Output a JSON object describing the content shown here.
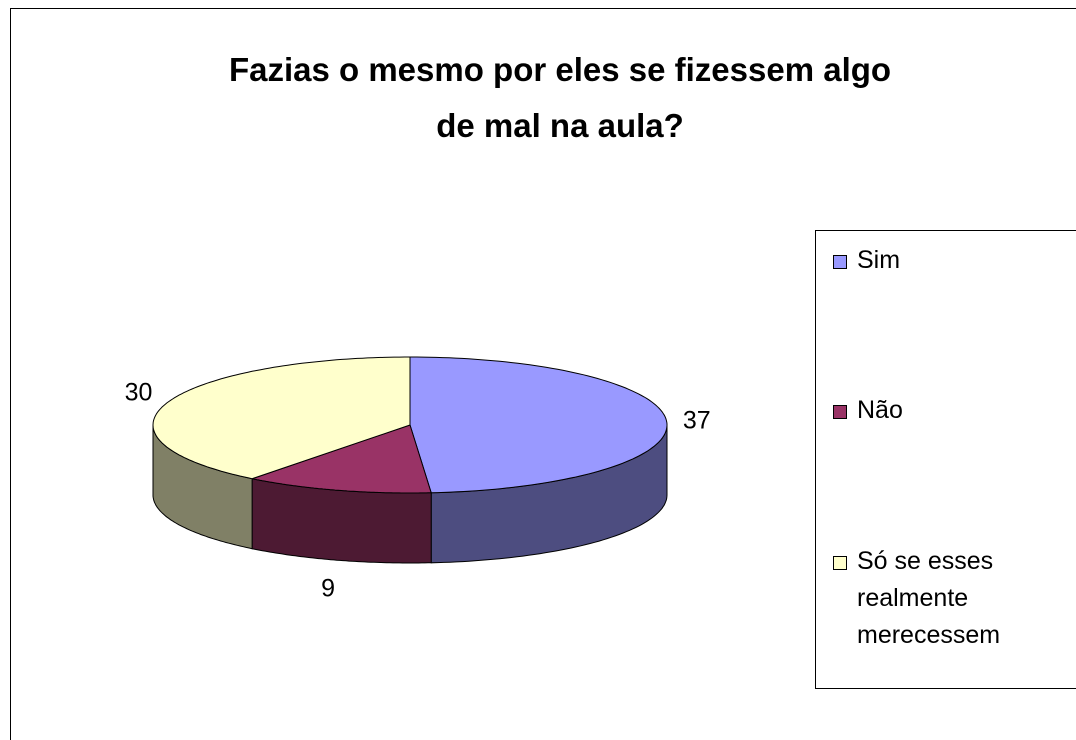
{
  "chart_data": {
    "type": "pie3d",
    "title": "Fazias o mesmo por eles se fizessem algo de mal na aula?",
    "categories": [
      "Sim",
      "Não",
      "Só se esses realmente merecessem"
    ],
    "values": [
      37,
      9,
      30
    ],
    "colors": [
      "#9999ff",
      "#993366",
      "#ffffcc"
    ],
    "legend": "right"
  }
}
